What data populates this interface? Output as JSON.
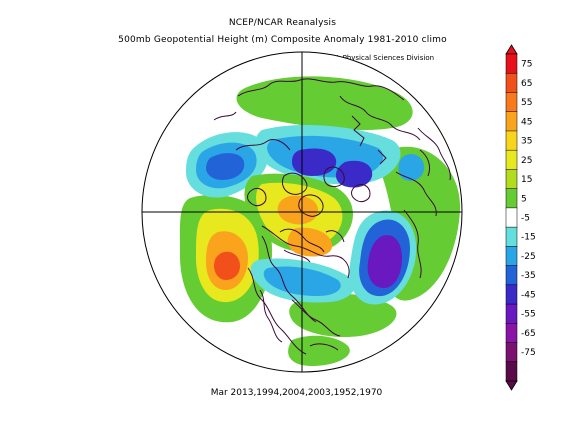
{
  "header": {
    "title": "NCEP/NCAR Reanalysis",
    "subtitle": "500mb Geopotential Height (m) Composite Anomaly 1981-2010 climo",
    "credit": "NOAA/ESRL Physical Sciences Division"
  },
  "footer": {
    "composite_label": "Mar 2013,1994,2004,2003,1952,1970"
  },
  "map": {
    "projection": "north-polar-stereographic",
    "outline_color": "#000000",
    "coastline_color": "#3a0a3a"
  },
  "colorbar": {
    "labels": [
      "75",
      "65",
      "55",
      "45",
      "35",
      "25",
      "15",
      "5",
      "-5",
      "-15",
      "-25",
      "-35",
      "-45",
      "-55",
      "-65",
      "-75"
    ],
    "colors": [
      "#e8101a",
      "#f2501a",
      "#f87a1a",
      "#f9a41c",
      "#f8d41a",
      "#e8e81e",
      "#b4dc1e",
      "#66cc33",
      "#ffffff",
      "#66dede",
      "#2aa6e6",
      "#2264d8",
      "#3a2ac8",
      "#6a18c0",
      "#8a14a6",
      "#7a1270",
      "#5a0a48"
    ]
  }
}
